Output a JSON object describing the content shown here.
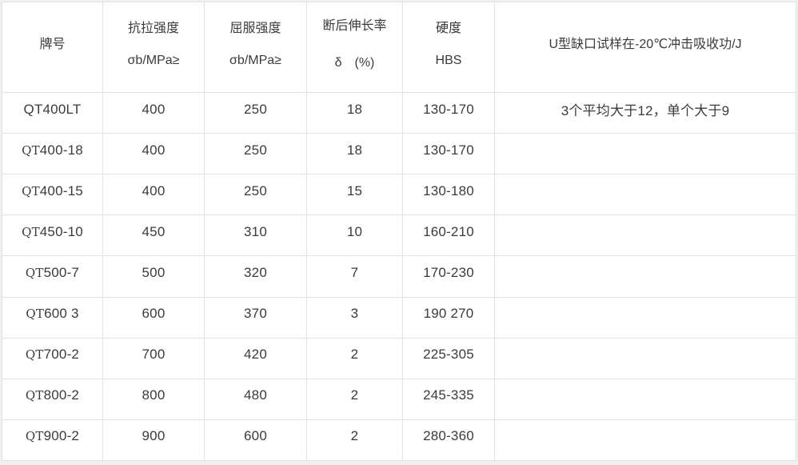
{
  "page": {
    "background_color": "#f0f0f0",
    "table_background": "#ffffff",
    "border_color": "#e2e2e2",
    "text_color": "#3b3b3b"
  },
  "table": {
    "columns": [
      {
        "id": "grade",
        "lines": [
          "牌号"
        ]
      },
      {
        "id": "tensile",
        "lines": [
          "抗拉强度",
          "σb/MPa≥"
        ]
      },
      {
        "id": "yield",
        "lines": [
          "屈服强度",
          "σb/MPa≥"
        ]
      },
      {
        "id": "elongation",
        "lines": [
          "断后伸长率",
          "δ　(%)"
        ]
      },
      {
        "id": "hardness",
        "lines": [
          "硬度",
          "HBS"
        ]
      },
      {
        "id": "impact",
        "lines": [
          "U型缺口试样在-20℃冲击吸收功/J"
        ]
      }
    ],
    "rows": [
      {
        "grade": "QT400LT",
        "grade_serif_prefix": false,
        "tensile": "400",
        "yield": "250",
        "elongation": "18",
        "hardness": "130-170",
        "impact": "3个平均大于12，单个大于9"
      },
      {
        "grade": "QT400-18",
        "grade_serif_prefix": true,
        "tensile": "400",
        "yield": "250",
        "elongation": "18",
        "hardness": "130-170",
        "impact": ""
      },
      {
        "grade": "QT400-15",
        "grade_serif_prefix": true,
        "tensile": "400",
        "yield": "250",
        "elongation": "15",
        "hardness": "130-180",
        "impact": ""
      },
      {
        "grade": "QT450-10",
        "grade_serif_prefix": true,
        "tensile": "450",
        "yield": "310",
        "elongation": "10",
        "hardness": "160-210",
        "impact": ""
      },
      {
        "grade": "QT500-7",
        "grade_serif_prefix": true,
        "tensile": "500",
        "yield": "320",
        "elongation": "7",
        "hardness": "170-230",
        "impact": ""
      },
      {
        "grade": "QT600 3",
        "grade_serif_prefix": true,
        "tensile": "600",
        "yield": "370",
        "elongation": "3",
        "hardness": "190 270",
        "impact": ""
      },
      {
        "grade": "QT700-2",
        "grade_serif_prefix": true,
        "tensile": "700",
        "yield": "420",
        "elongation": "2",
        "hardness": "225-305",
        "impact": ""
      },
      {
        "grade": "QT800-2",
        "grade_serif_prefix": true,
        "tensile": "800",
        "yield": "480",
        "elongation": "2",
        "hardness": "245-335",
        "impact": ""
      },
      {
        "grade": "QT900-2",
        "grade_serif_prefix": true,
        "tensile": "900",
        "yield": "600",
        "elongation": "2",
        "hardness": "280-360",
        "impact": ""
      }
    ]
  }
}
